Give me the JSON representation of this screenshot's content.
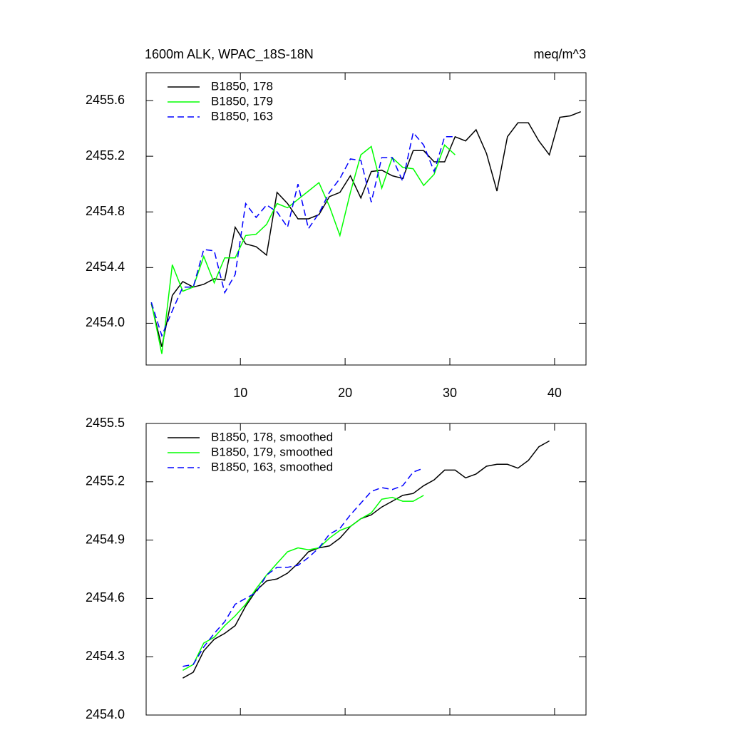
{
  "chart_data": [
    {
      "type": "line",
      "title": "1600m ALK, WPAC_18S-18N",
      "units": "meq/m^3",
      "xlim": [
        1,
        43
      ],
      "xticks": [
        10,
        20,
        30,
        40
      ],
      "ylim": [
        2453.7,
        2455.8
      ],
      "yticks": [
        {
          "value": 2454,
          "label": "2454.0"
        },
        2454.4,
        2454.8,
        2455.2,
        2455.6
      ],
      "legend": "top-left",
      "series": [
        {
          "name": "B1850, 178",
          "color": "#000000",
          "dash": false,
          "x": [
            1.5,
            2.5,
            3.5,
            4.5,
            5.5,
            6.5,
            7.5,
            8.5,
            9.5,
            10.5,
            11.5,
            12.5,
            13.5,
            14.5,
            15.5,
            16.5,
            17.5,
            18.5,
            19.5,
            20.5,
            21.5,
            22.5,
            23.5,
            24.5,
            25.5,
            26.5,
            27.5,
            28.5,
            29.5,
            30.5,
            31.5,
            32.5,
            33.5,
            34.5,
            35.5,
            36.5,
            37.5,
            38.5,
            39.5,
            40.5,
            41.5,
            42.5
          ],
          "values": [
            2454.14,
            2453.83,
            2454.2,
            2454.3,
            2454.26,
            2454.28,
            2454.32,
            2454.31,
            2454.69,
            2454.57,
            2454.55,
            2454.49,
            2454.94,
            2454.86,
            2454.75,
            2454.75,
            2454.78,
            2454.91,
            2454.94,
            2455.06,
            2454.9,
            2455.09,
            2455.1,
            2455.06,
            2455.04,
            2455.24,
            2455.24,
            2455.16,
            2455.16,
            2455.34,
            2455.31,
            2455.39,
            2455.22,
            2454.95,
            2455.34,
            2455.44,
            2455.44,
            2455.31,
            2455.21,
            2455.48,
            2455.49,
            2455.52
          ]
        },
        {
          "name": "B1850, 179",
          "color": "#00ff00",
          "dash": false,
          "x": [
            1.5,
            2.5,
            3.5,
            4.5,
            5.5,
            6.5,
            7.5,
            8.5,
            9.5,
            10.5,
            11.5,
            12.5,
            13.5,
            14.5,
            15.5,
            16.5,
            17.5,
            18.5,
            19.5,
            20.5,
            21.5,
            22.5,
            23.5,
            24.5,
            25.5,
            26.5,
            27.5,
            28.5,
            29.5,
            30.5
          ],
          "values": [
            2454.15,
            2453.78,
            2454.42,
            2454.23,
            2454.26,
            2454.48,
            2454.29,
            2454.47,
            2454.47,
            2454.63,
            2454.64,
            2454.71,
            2454.86,
            2454.83,
            2454.89,
            2454.95,
            2455.01,
            2454.84,
            2454.63,
            2454.94,
            2455.21,
            2455.27,
            2454.97,
            2455.19,
            2455.12,
            2455.11,
            2454.99,
            2455.07,
            2455.28,
            2455.21
          ]
        },
        {
          "name": "B1850, 163",
          "color": "#0000ff",
          "dash": true,
          "x": [
            1.5,
            2.5,
            3.5,
            4.5,
            5.5,
            6.5,
            7.5,
            8.5,
            9.5,
            10.5,
            11.5,
            12.5,
            13.5,
            14.5,
            15.5,
            16.5,
            17.5,
            18.5,
            19.5,
            20.5,
            21.5,
            22.5,
            23.5,
            24.5,
            25.5,
            26.5,
            27.5,
            28.5,
            29.5,
            30.5
          ],
          "values": [
            2454.15,
            2453.91,
            2454.09,
            2454.26,
            2454.26,
            2454.53,
            2454.52,
            2454.22,
            2454.35,
            2454.86,
            2454.76,
            2454.85,
            2454.8,
            2454.69,
            2455.0,
            2454.68,
            2454.79,
            2454.94,
            2455.04,
            2455.18,
            2455.17,
            2454.87,
            2455.19,
            2455.19,
            2455.02,
            2455.37,
            2455.28,
            2455.09,
            2455.34,
            2455.34
          ]
        }
      ]
    },
    {
      "type": "line",
      "xlim": [
        1,
        43
      ],
      "xticks": [
        10,
        20,
        30,
        40
      ],
      "ylim": [
        2454,
        2455.5
      ],
      "yticks": [
        {
          "value": 2454,
          "label": "2454.0"
        },
        2454.3,
        2454.6,
        2454.9,
        2455.2,
        2455.5
      ],
      "legend": "top-left",
      "series": [
        {
          "name": "B1850, 178, smoothed",
          "color": "#000000",
          "dash": false,
          "x": [
            4.5,
            5.5,
            6.5,
            7.5,
            8.5,
            9.5,
            10.5,
            11.5,
            12.5,
            13.5,
            14.5,
            15.5,
            16.5,
            17.5,
            18.5,
            19.5,
            20.5,
            21.5,
            22.5,
            23.5,
            24.5,
            25.5,
            26.5,
            27.5,
            28.5,
            29.5,
            30.5,
            31.5,
            32.5,
            33.5,
            34.5,
            35.5,
            36.5,
            37.5,
            38.5,
            39.5
          ],
          "values": [
            2454.19,
            2454.22,
            2454.33,
            2454.39,
            2454.42,
            2454.46,
            2454.56,
            2454.64,
            2454.69,
            2454.7,
            2454.73,
            2454.78,
            2454.84,
            2454.86,
            2454.87,
            2454.91,
            2454.97,
            2455.01,
            2455.03,
            2455.07,
            2455.1,
            2455.13,
            2455.14,
            2455.18,
            2455.21,
            2455.26,
            2455.26,
            2455.22,
            2455.24,
            2455.28,
            2455.29,
            2455.29,
            2455.27,
            2455.31,
            2455.38,
            2455.41
          ]
        },
        {
          "name": "B1850, 179, smoothed",
          "color": "#00ff00",
          "dash": false,
          "x": [
            4.5,
            5.5,
            6.5,
            7.5,
            8.5,
            9.5,
            10.5,
            11.5,
            12.5,
            13.5,
            14.5,
            15.5,
            16.5,
            17.5,
            18.5,
            19.5,
            20.5,
            21.5,
            22.5,
            23.5,
            24.5,
            25.5,
            26.5,
            27.5
          ],
          "values": [
            2454.23,
            2454.26,
            2454.37,
            2454.4,
            2454.46,
            2454.51,
            2454.57,
            2454.65,
            2454.72,
            2454.78,
            2454.84,
            2454.86,
            2454.85,
            2454.86,
            2454.91,
            2454.95,
            2454.97,
            2455.01,
            2455.04,
            2455.11,
            2455.12,
            2455.1,
            2455.1,
            2455.13
          ]
        },
        {
          "name": "B1850, 163, smoothed",
          "color": "#0000ff",
          "dash": true,
          "x": [
            4.5,
            5.5,
            6.5,
            7.5,
            8.5,
            9.5,
            10.5,
            11.5,
            12.5,
            13.5,
            14.5,
            15.5,
            16.5,
            17.5,
            18.5,
            19.5,
            20.5,
            21.5,
            22.5,
            23.5,
            24.5,
            25.5,
            26.5,
            27.5
          ],
          "values": [
            2454.25,
            2454.26,
            2454.35,
            2454.42,
            2454.48,
            2454.57,
            2454.6,
            2454.63,
            2454.72,
            2454.76,
            2454.76,
            2454.77,
            2454.81,
            2454.86,
            2454.93,
            2454.96,
            2455.03,
            2455.09,
            2455.15,
            2455.17,
            2455.16,
            2455.18,
            2455.25,
            2455.27
          ]
        }
      ]
    }
  ]
}
